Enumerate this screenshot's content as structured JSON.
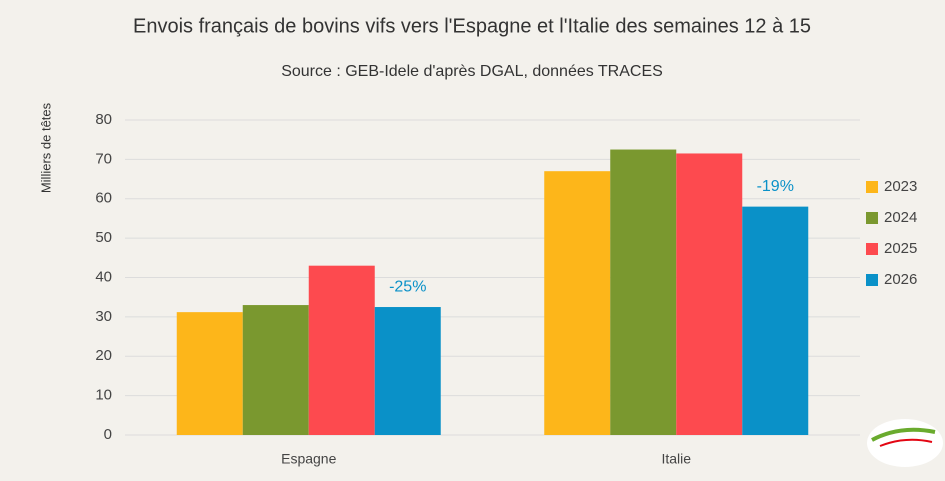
{
  "chart_data": {
    "type": "bar",
    "title": "Envois français de bovins vifs vers l'Espagne et l'Italie des semaines 12 à 15",
    "subtitle": "Source : GEB-Idele d'après DGAL, données TRACES",
    "y_label": "Milliers de têtes",
    "categories": [
      "Espagne",
      "Italie"
    ],
    "series": [
      {
        "name": "2023",
        "color": "#fdb61a",
        "values": [
          31.2,
          67
        ]
      },
      {
        "name": "2024",
        "color": "#7a982f",
        "values": [
          33,
          72.5
        ]
      },
      {
        "name": "2025",
        "color": "#fd4a4f",
        "values": [
          43,
          71.5
        ]
      },
      {
        "name": "2026",
        "color": "#0a91c8",
        "values": [
          32.5,
          58
        ]
      }
    ],
    "annotations": [
      "-25%",
      "-19%"
    ],
    "ylim": [
      0,
      80
    ],
    "yticks": [
      0,
      10,
      20,
      30,
      40,
      50,
      60,
      70,
      80
    ],
    "grid": true,
    "legend": "right"
  }
}
